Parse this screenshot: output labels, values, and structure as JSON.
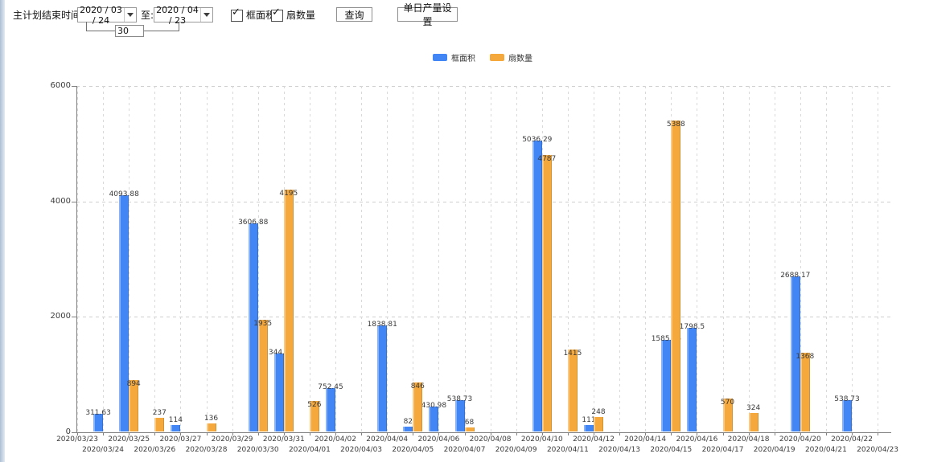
{
  "toolbar": {
    "label_start": "主计划结束时间:",
    "date_from": "2020 / 03 / 24",
    "label_to": "至:",
    "date_to": "2020 / 04 / 23",
    "interval_value": "30",
    "checkbox_frame": "框面积",
    "checkbox_fan": "扇数量",
    "query_button": "查询",
    "daily_output_button": "单日产量设置"
  },
  "legend": [
    {
      "label": "框面积",
      "color": "#4285f4"
    },
    {
      "label": "扇数量",
      "color": "#f5a93c"
    }
  ],
  "chart_data": {
    "type": "bar",
    "title": "",
    "xlabel": "",
    "ylabel": "",
    "ylim": [
      0,
      6000
    ],
    "yticks": [
      0,
      2000,
      4000,
      6000
    ],
    "grid": true,
    "legend_position": "top",
    "categories": [
      "2020/03/23",
      "2020/03/24",
      "2020/03/25",
      "2020/03/26",
      "2020/03/27",
      "2020/03/28",
      "2020/03/29",
      "2020/03/30",
      "2020/03/31",
      "2020/04/01",
      "2020/04/02",
      "2020/04/03",
      "2020/04/04",
      "2020/04/05",
      "2020/04/06",
      "2020/04/07",
      "2020/04/08",
      "2020/04/09",
      "2020/04/10",
      "2020/04/11",
      "2020/04/12",
      "2020/04/13",
      "2020/04/14",
      "2020/04/15",
      "2020/04/16",
      "2020/04/17",
      "2020/04/18",
      "2020/04/19",
      "2020/04/20",
      "2020/04/21",
      "2020/04/22",
      "2020/04/23"
    ],
    "series": [
      {
        "name": "框面积",
        "color": "#4285f4",
        "values": [
          null,
          311.63,
          4093.88,
          null,
          114,
          null,
          null,
          3606.88,
          1344.95,
          null,
          752.45,
          null,
          1838.81,
          82,
          430.98,
          538.73,
          null,
          null,
          5036.29,
          null,
          111,
          null,
          null,
          1585.96,
          1798.5,
          null,
          null,
          null,
          2688.17,
          null,
          538.73,
          null
        ]
      },
      {
        "name": "扇数量",
        "color": "#f5a93c",
        "values": [
          null,
          null,
          894,
          237,
          null,
          136,
          null,
          1935,
          4195,
          526,
          null,
          null,
          null,
          846,
          null,
          68,
          null,
          null,
          4787,
          1415,
          248,
          null,
          null,
          5388,
          null,
          570,
          324,
          null,
          1368,
          null,
          null,
          null
        ]
      }
    ]
  }
}
